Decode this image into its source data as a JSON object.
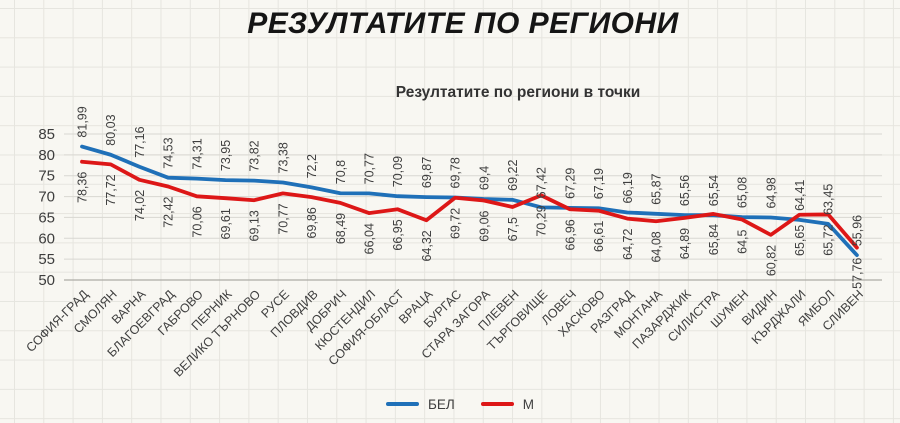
{
  "chart_data": {
    "type": "line",
    "title": "РЕЗУЛТАТИТЕ ПО РЕГИОНИ",
    "subtitle": "Резултатите по региони в точки",
    "categories": [
      "СОФИЯ-ГРАД",
      "СМОЛЯН",
      "ВАРНА",
      "БЛАГОЕВГРАД",
      "ГАБРОВО",
      "ПЕРНИК",
      "ВЕЛИКО ТЪРНОВО",
      "РУСЕ",
      "ПЛОВДИВ",
      "ДОБРИЧ",
      "КЮСТЕНДИЛ",
      "СОФИЯ-ОБЛАСТ",
      "ВРАЦА",
      "БУРГАС",
      "СТАРА ЗАГОРА",
      "ПЛЕВЕН",
      "ТЪРГОВИЩЕ",
      "ЛОВЕЧ",
      "ХАСКОВО",
      "РАЗГРАД",
      "МОНТАНА",
      "ПАЗАРДЖИК",
      "СИЛИСТРА",
      "ШУМЕН",
      "ВИДИН",
      "КЪРДЖАЛИ",
      "ЯМБОЛ",
      "СЛИВЕН"
    ],
    "series": [
      {
        "name": "БЕЛ",
        "color": "#1f70b8",
        "values": [
          81.99,
          80.03,
          77.16,
          74.53,
          74.31,
          73.95,
          73.82,
          73.38,
          72.2,
          70.8,
          70.77,
          70.09,
          69.87,
          69.78,
          69.4,
          69.22,
          67.42,
          67.29,
          67.19,
          66.19,
          65.87,
          65.56,
          65.54,
          65.08,
          64.98,
          64.41,
          63.45,
          55.96
        ],
        "labels": [
          "81,99",
          "80,03",
          "77,16",
          "74,53",
          "74,31",
          "73,95",
          "73,82",
          "73,38",
          "72,2",
          "70,8",
          "70,77",
          "70,09",
          "69,87",
          "69,78",
          "69,4",
          "69,22",
          "67,42",
          "67,29",
          "67,19",
          "66,19",
          "65,87",
          "65,56",
          "65,54",
          "65,08",
          "64,98",
          "64,41",
          "63,45",
          "55,96"
        ]
      },
      {
        "name": "М",
        "color": "#dd1717",
        "values": [
          78.36,
          77.72,
          74.02,
          72.42,
          70.06,
          69.61,
          69.13,
          70.77,
          69.86,
          68.49,
          66.04,
          66.95,
          64.32,
          69.72,
          69.06,
          67.5,
          70.29,
          66.96,
          66.61,
          64.72,
          64.08,
          64.89,
          65.84,
          64.5,
          60.82,
          65.65,
          65.72,
          57.76
        ],
        "labels": [
          "78,36",
          "77,72",
          "74,02",
          "72,42",
          "70,06",
          "69,61",
          "69,13",
          "70,77",
          "69,86",
          "68,49",
          "66,04",
          "66,95",
          "64,32",
          "69,72",
          "69,06",
          "67,5",
          "70,29",
          "66,96",
          "66,61",
          "64,72",
          "64,08",
          "64,89",
          "65,84",
          "64,5",
          "60,82",
          "65,65",
          "65,72",
          "57,76"
        ]
      }
    ],
    "ylim": [
      50,
      85
    ],
    "yticks": [
      85,
      80,
      75,
      70,
      65,
      60,
      55,
      50
    ],
    "grid": "horizontal",
    "legend_position": "bottom-center",
    "data_labels": "rotated-90",
    "xtick_rotation": 45
  },
  "legend": {
    "items": [
      {
        "label": "БЕЛ",
        "color": "#1f70b8"
      },
      {
        "label": "М",
        "color": "#dd1717"
      }
    ]
  },
  "colors": {
    "background": "#f8f7f2",
    "grid_paper": "#e6e5df",
    "chart_gridline": "#d8d7d1",
    "axis_line": "#adaca6",
    "text": "#3f3f3f"
  }
}
